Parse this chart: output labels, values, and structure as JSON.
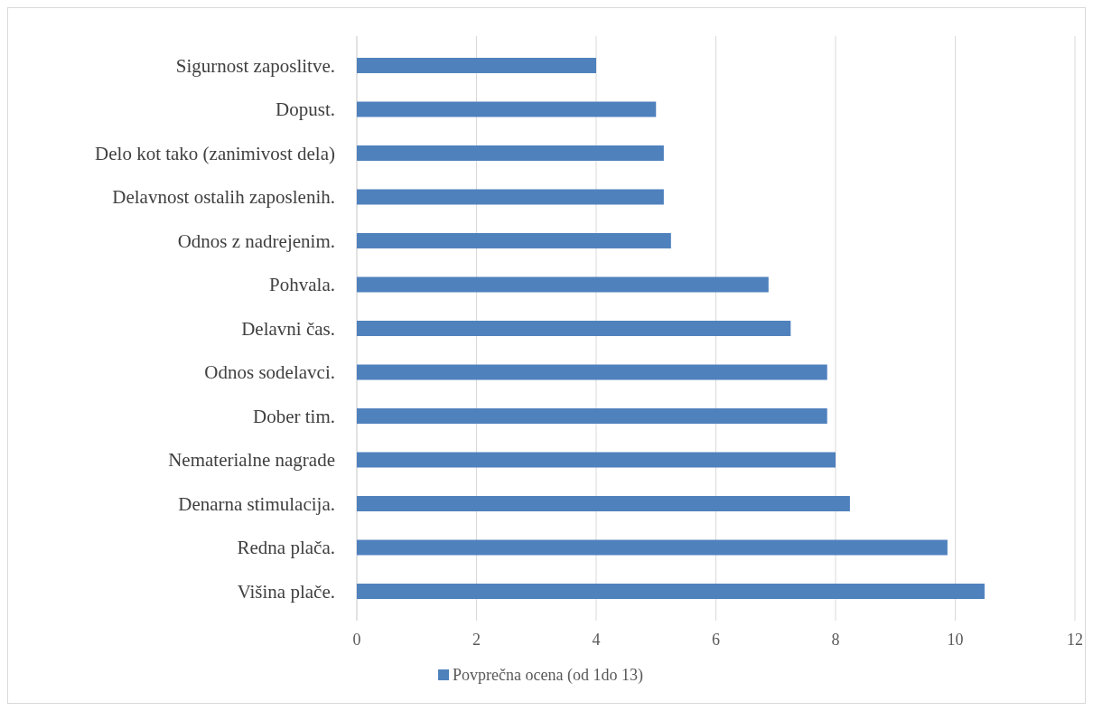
{
  "chart_data": {
    "type": "bar",
    "orientation": "horizontal",
    "categories": [
      "Sigurnost zaposlitve.",
      "Dopust.",
      "Delo kot tako (zanimivost dela)",
      "Delavnost ostalih zaposlenih.",
      "Odnos z nadrejenim.",
      "Pohvala.",
      "Delavni čas.",
      "Odnos sodelavci.",
      "Dober tim.",
      "Nematerialne nagrade",
      "Denarna stimulacija.",
      "Redna plača.",
      "Višina plače."
    ],
    "series": [
      {
        "name": "Povprečna ocena (od 1do 13)",
        "color": "#4f81bd",
        "values": [
          4,
          5,
          5.13,
          5.13,
          5.25,
          6.88,
          7.25,
          7.86,
          7.86,
          8,
          8.24,
          9.87,
          10.49
        ]
      }
    ],
    "xlim": [
      0,
      12
    ],
    "xticks": [
      0,
      2,
      4,
      6,
      8,
      10,
      12
    ],
    "grid": "x",
    "legend": "bottom"
  }
}
